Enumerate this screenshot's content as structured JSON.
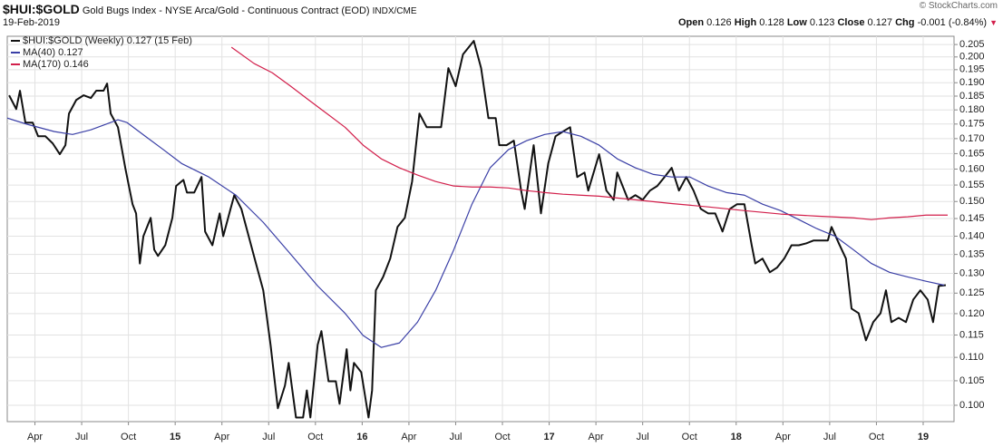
{
  "header": {
    "symbol": "$HUI:$GOLD",
    "description": "Gold Bugs Index - NYSE Arca/Gold - Continuous Contract (EOD)",
    "exchange": "INDX/CME",
    "date": "19-Feb-2019",
    "credit": "© StockCharts.com",
    "quote": [
      {
        "label": "Open",
        "value": 0.126
      },
      {
        "label": "High",
        "value": 0.128
      },
      {
        "label": "Low",
        "value": 0.123
      },
      {
        "label": "Close",
        "value": 0.127
      },
      {
        "label": "Chg",
        "value": -0.001
      }
    ],
    "chg_pct": "(-0.84%)"
  },
  "chart_data": {
    "type": "line",
    "log_y": true,
    "grid": true,
    "legend": "top-left",
    "xlim": [
      2014.102,
      2019.165
    ],
    "ylim": [
      0.0968,
      0.2084
    ],
    "xticks": [
      {
        "value": 2014.25,
        "label": "Apr"
      },
      {
        "value": 2014.5,
        "label": "Jul"
      },
      {
        "value": 2014.75,
        "label": "Oct"
      },
      {
        "value": 2015,
        "label": "15"
      },
      {
        "value": 2015.25,
        "label": "Apr"
      },
      {
        "value": 2015.5,
        "label": "Jul"
      },
      {
        "value": 2015.75,
        "label": "Oct"
      },
      {
        "value": 2016,
        "label": "16"
      },
      {
        "value": 2016.25,
        "label": "Apr"
      },
      {
        "value": 2016.5,
        "label": "Jul"
      },
      {
        "value": 2016.75,
        "label": "Oct"
      },
      {
        "value": 2017,
        "label": "17"
      },
      {
        "value": 2017.25,
        "label": "Apr"
      },
      {
        "value": 2017.5,
        "label": "Jul"
      },
      {
        "value": 2017.75,
        "label": "Oct"
      },
      {
        "value": 2018,
        "label": "18"
      },
      {
        "value": 2018.25,
        "label": "Apr"
      },
      {
        "value": 2018.5,
        "label": "Jul"
      },
      {
        "value": 2018.75,
        "label": "Oct"
      },
      {
        "value": 2019,
        "label": "19"
      }
    ],
    "yticks": [
      {
        "value": 0.1,
        "label": "0.100"
      },
      0.105,
      {
        "value": 0.11,
        "label": "0.110"
      },
      0.115,
      {
        "value": 0.12,
        "label": "0.120"
      },
      0.125,
      {
        "value": 0.13,
        "label": "0.130"
      },
      0.135,
      {
        "value": 0.14,
        "label": "0.140"
      },
      0.145,
      {
        "value": 0.15,
        "label": "0.150"
      },
      0.155,
      {
        "value": 0.16,
        "label": "0.160"
      },
      0.165,
      {
        "value": 0.17,
        "label": "0.170"
      },
      0.175,
      {
        "value": 0.18,
        "label": "0.180"
      },
      0.185,
      {
        "value": 0.19,
        "label": "0.190"
      },
      0.195,
      {
        "value": 0.2,
        "label": "0.200"
      },
      0.205
    ],
    "series": [
      {
        "name": "$HUI:$GOLD (Weekly) 0.127 (15 Feb)",
        "color": "#111111",
        "width": 2,
        "x": [
          2014.112,
          2014.15,
          2014.17,
          2014.199,
          2014.238,
          2014.267,
          2014.306,
          2014.345,
          2014.383,
          2014.413,
          2014.432,
          2014.471,
          2014.51,
          2014.549,
          2014.578,
          2014.617,
          2014.636,
          2014.655,
          2014.694,
          2014.733,
          2014.772,
          2014.791,
          2014.811,
          2014.83,
          2014.869,
          2014.888,
          2014.908,
          2014.947,
          2014.985,
          2015.005,
          2015.044,
          2015.063,
          2015.102,
          2015.141,
          2015.16,
          2015.199,
          2015.238,
          2015.257,
          2015.296,
          2015.316,
          2015.354,
          2015.393,
          2015.432,
          2015.471,
          2015.51,
          2015.549,
          2015.587,
          2015.607,
          2015.646,
          2015.684,
          2015.704,
          2015.723,
          2015.762,
          2015.782,
          2015.82,
          2015.859,
          2015.879,
          2015.917,
          2015.937,
          2015.956,
          2015.995,
          2016.034,
          2016.053,
          2016.073,
          2016.112,
          2016.15,
          2016.189,
          2016.228,
          2016.267,
          2016.306,
          2016.345,
          2016.383,
          2016.422,
          2016.461,
          2016.5,
          2016.539,
          2016.597,
          2016.636,
          2016.675,
          2016.714,
          2016.733,
          2016.772,
          2016.811,
          2016.85,
          2016.869,
          2016.917,
          2016.956,
          2016.995,
          2017.034,
          2017.073,
          2017.112,
          2017.15,
          2017.189,
          2017.209,
          2017.267,
          2017.306,
          2017.345,
          2017.364,
          2017.422,
          2017.461,
          2017.5,
          2017.539,
          2017.578,
          2017.617,
          2017.655,
          2017.694,
          2017.733,
          2017.772,
          2017.811,
          2017.85,
          2017.888,
          2017.927,
          2017.966,
          2018.005,
          2018.044,
          2018.083,
          2018.102,
          2018.141,
          2018.18,
          2018.218,
          2018.257,
          2018.296,
          2018.335,
          2018.374,
          2018.413,
          2018.451,
          2018.49,
          2018.51,
          2018.549,
          2018.587,
          2018.617,
          2018.655,
          2018.694,
          2018.733,
          2018.772,
          2018.801,
          2018.83,
          2018.869,
          2018.908,
          2018.947,
          2018.985,
          2019.024,
          2019.053,
          2019.083,
          2019.121
        ],
        "values": [
          0.1853,
          0.1803,
          0.187,
          0.1755,
          0.1755,
          0.1708,
          0.1708,
          0.1684,
          0.1648,
          0.1678,
          0.1787,
          0.1836,
          0.1853,
          0.1843,
          0.187,
          0.187,
          0.1897,
          0.1787,
          0.1739,
          0.1604,
          0.1492,
          0.1465,
          0.1326,
          0.14,
          0.1452,
          0.1363,
          0.1346,
          0.1375,
          0.1452,
          0.1547,
          0.1566,
          0.1527,
          0.1527,
          0.1575,
          0.1413,
          0.1375,
          0.1465,
          0.14,
          0.1478,
          0.1519,
          0.1478,
          0.14,
          0.1326,
          0.1257,
          0.1128,
          0.0994,
          0.104,
          0.1088,
          0.0976,
          0.0976,
          0.103,
          0.0976,
          0.1128,
          0.1159,
          0.1049,
          0.1049,
          0.1003,
          0.1118,
          0.103,
          0.1088,
          0.1068,
          0.0976,
          0.103,
          0.1257,
          0.1291,
          0.1339,
          0.1426,
          0.1452,
          0.1561,
          0.1787,
          0.1739,
          0.1739,
          0.1739,
          0.1956,
          0.1887,
          0.201,
          0.2065,
          0.1956,
          0.1771,
          0.1771,
          0.1678,
          0.1678,
          0.1693,
          0.1533,
          0.1478,
          0.1678,
          0.1465,
          0.1618,
          0.1708,
          0.1724,
          0.1739,
          0.1575,
          0.1589,
          0.1533,
          0.1648,
          0.1533,
          0.1505,
          0.1589,
          0.1505,
          0.1519,
          0.1505,
          0.1533,
          0.1547,
          0.1575,
          0.1604,
          0.1533,
          0.1575,
          0.1533,
          0.1478,
          0.1465,
          0.1465,
          0.1413,
          0.1478,
          0.1492,
          0.1492,
          0.1375,
          0.1326,
          0.1339,
          0.1303,
          0.1315,
          0.1339,
          0.1375,
          0.1375,
          0.138,
          0.1388,
          0.1388,
          0.1388,
          0.1426,
          0.138,
          0.1339,
          0.1212,
          0.1201,
          0.1138,
          0.118,
          0.1201,
          0.1257,
          0.118,
          0.119,
          0.118,
          0.1234,
          0.1257,
          0.1234,
          0.118,
          0.1268,
          0.127
        ]
      },
      {
        "name": "MA(40) 0.127",
        "color": "#3a3fa6",
        "width": 1.2,
        "x": [
          2014.102,
          2014.209,
          2014.354,
          2014.451,
          2014.549,
          2014.694,
          2014.743,
          2014.84,
          2014.937,
          2015.034,
          2015.18,
          2015.325,
          2015.471,
          2015.617,
          2015.762,
          2015.908,
          2016.005,
          2016.102,
          2016.199,
          2016.296,
          2016.393,
          2016.49,
          2016.587,
          2016.684,
          2016.782,
          2016.879,
          2016.976,
          2017.073,
          2017.17,
          2017.267,
          2017.364,
          2017.461,
          2017.558,
          2017.655,
          2017.752,
          2017.85,
          2017.947,
          2018.044,
          2018.141,
          2018.238,
          2018.335,
          2018.432,
          2018.529,
          2018.626,
          2018.723,
          2018.82,
          2018.917,
          2019.015,
          2019.112
        ],
        "values": [
          0.1771,
          0.1749,
          0.1724,
          0.1714,
          0.173,
          0.1765,
          0.1755,
          0.1708,
          0.1663,
          0.1618,
          0.1575,
          0.1519,
          0.1439,
          0.1351,
          0.1268,
          0.1201,
          0.1149,
          0.1122,
          0.1132,
          0.118,
          0.1257,
          0.1363,
          0.1492,
          0.1604,
          0.1663,
          0.1693,
          0.1714,
          0.1724,
          0.1708,
          0.1678,
          0.1633,
          0.1604,
          0.1583,
          0.1575,
          0.1575,
          0.1547,
          0.1527,
          0.1519,
          0.1492,
          0.1473,
          0.1447,
          0.1421,
          0.14,
          0.1363,
          0.1326,
          0.1303,
          0.1291,
          0.128,
          0.127
        ]
      },
      {
        "name": "MA(170) 0.146",
        "color": "#d21f4b",
        "width": 1.2,
        "x": [
          2015.301,
          2015.422,
          2015.519,
          2015.617,
          2015.714,
          2015.811,
          2015.908,
          2016.005,
          2016.102,
          2016.199,
          2016.296,
          2016.393,
          2016.49,
          2016.587,
          2016.684,
          2016.782,
          2016.879,
          2016.976,
          2017.073,
          2017.267,
          2017.461,
          2017.655,
          2017.85,
          2018.044,
          2018.238,
          2018.432,
          2018.626,
          2018.723,
          2018.82,
          2018.917,
          2019.015,
          2019.131
        ],
        "values": [
          0.2039,
          0.1974,
          0.1938,
          0.1887,
          0.1836,
          0.1787,
          0.1739,
          0.1678,
          0.1633,
          0.1604,
          0.1581,
          0.1561,
          0.1547,
          0.1544,
          0.1544,
          0.1541,
          0.1533,
          0.1527,
          0.1522,
          0.1516,
          0.1505,
          0.1494,
          0.1484,
          0.1473,
          0.1463,
          0.1457,
          0.1452,
          0.1447,
          0.1452,
          0.1455,
          0.146,
          0.146
        ]
      }
    ]
  }
}
